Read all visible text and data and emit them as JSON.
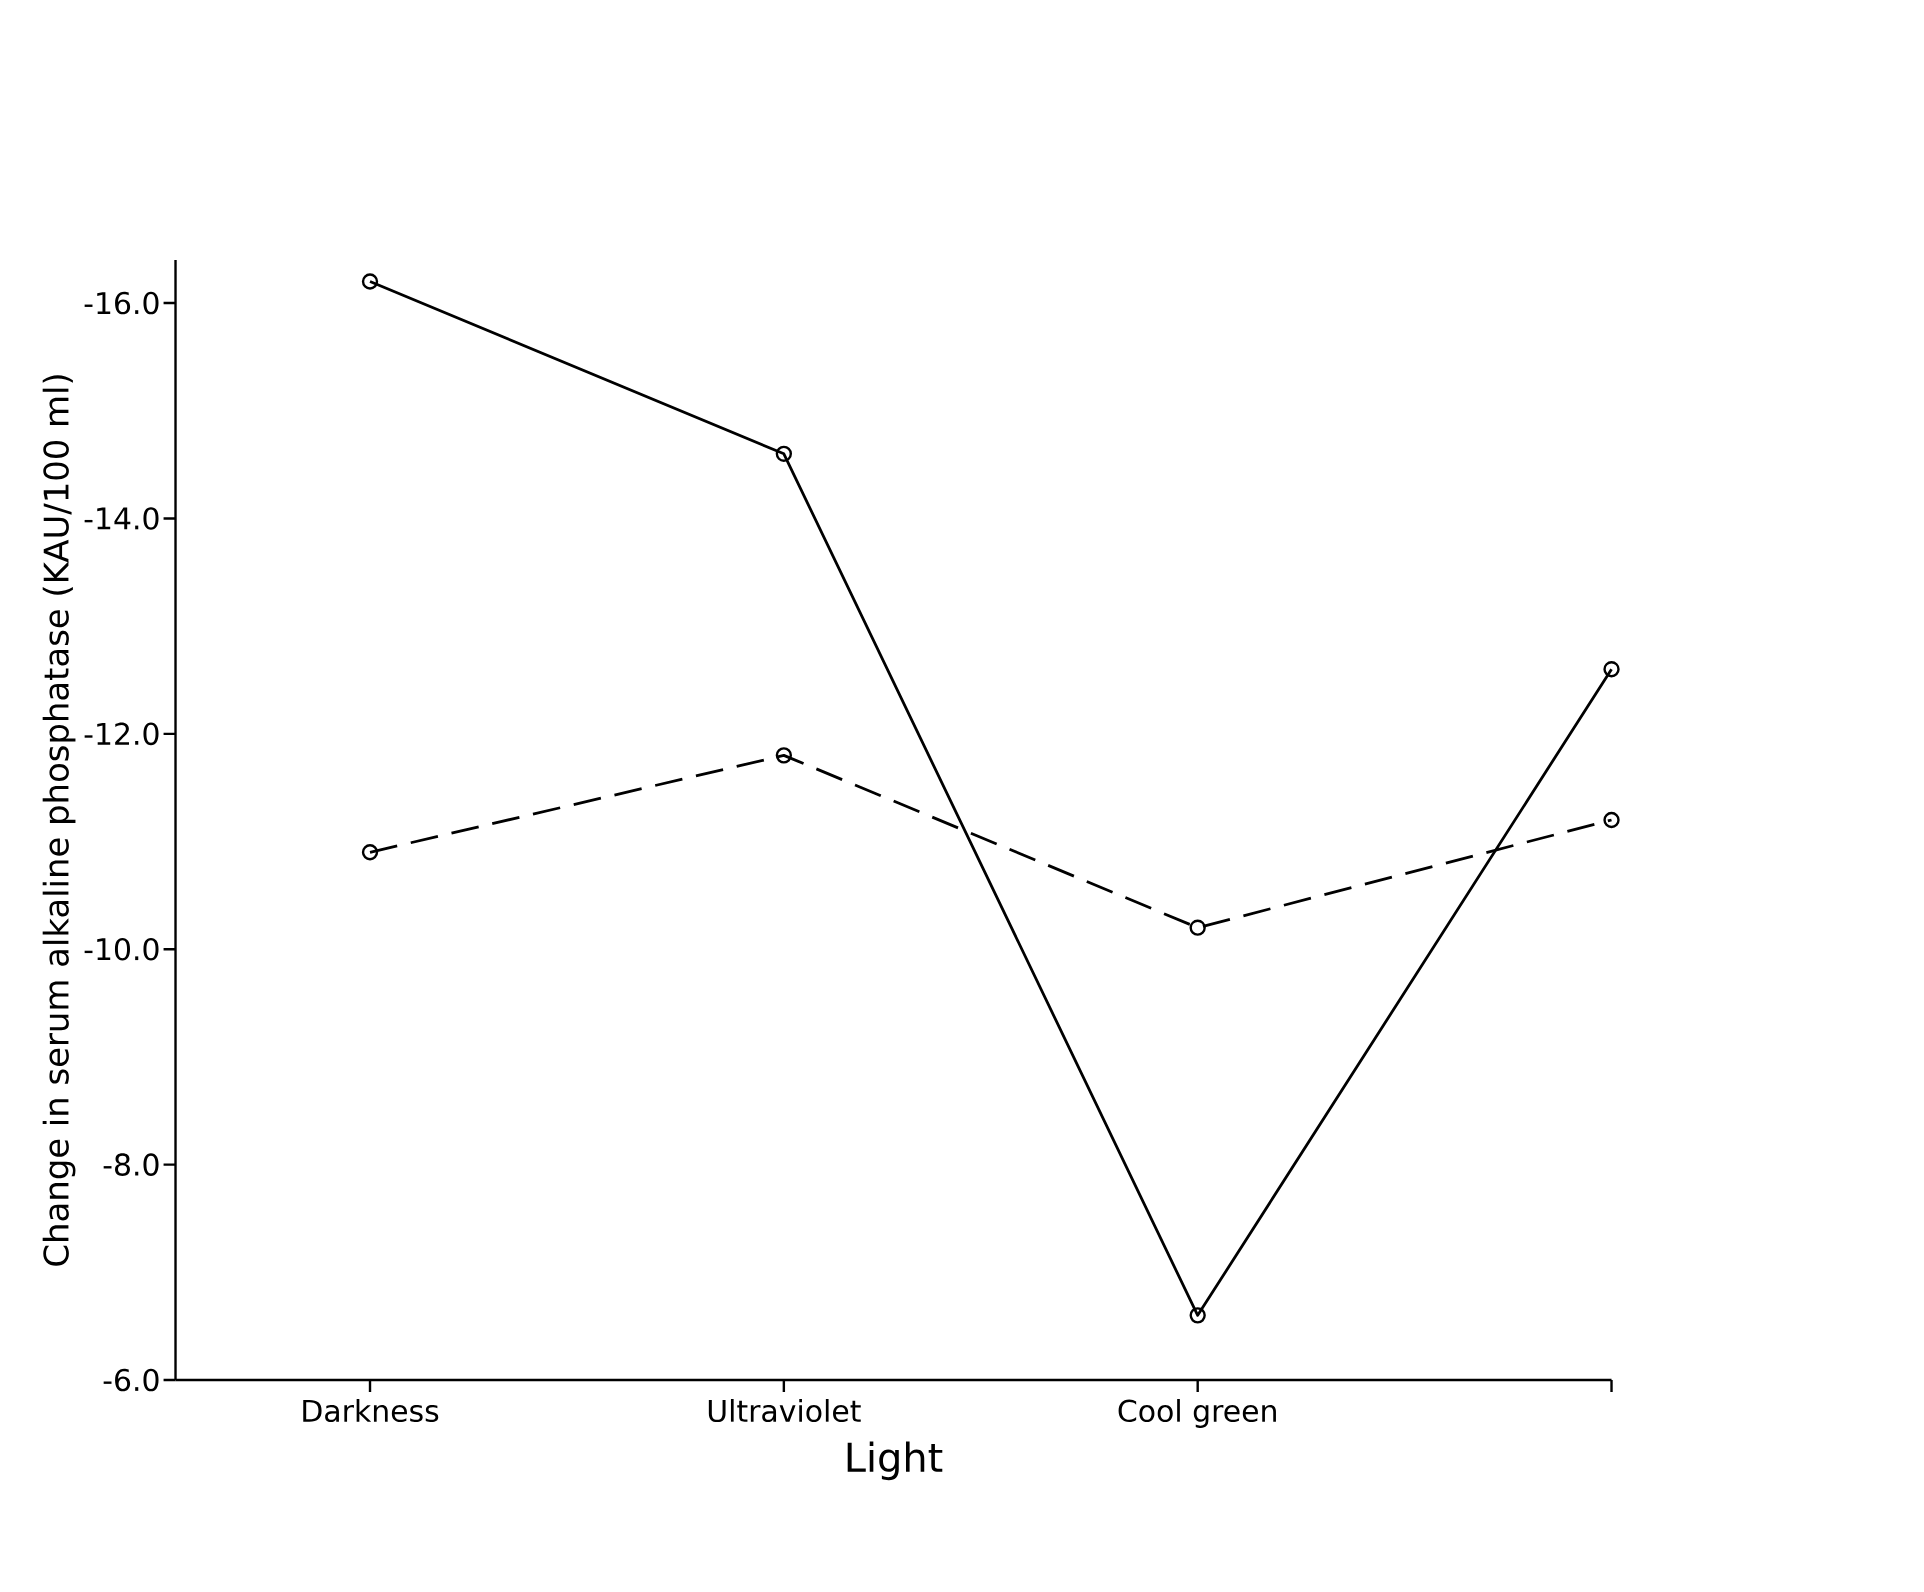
{
  "chart_data": {
    "type": "line",
    "xlabel": "Light",
    "ylabel": "Change in serum alkaline phosphatase (KAU/100 ml)",
    "categories": [
      "Darkness",
      "Ultraviolet",
      "Cool green",
      null
    ],
    "series": [
      {
        "color": "#000000",
        "line_style": "solid",
        "values": [
          -16.2,
          -14.6,
          -6.6,
          -12.6
        ]
      },
      {
        "color": "#000000",
        "line_style": "dashed",
        "values": [
          -10.9,
          -11.8,
          -10.2,
          -11.2
        ]
      }
    ],
    "marker": "circle",
    "ylim": [
      -6,
      -16.4
    ],
    "yticks": [
      {
        "value": -6,
        "label": "-6.0"
      },
      {
        "value": -8,
        "label": "-8.0"
      },
      {
        "value": -10,
        "label": "-10.0"
      },
      {
        "value": -12,
        "label": "-12.0"
      },
      {
        "value": -14,
        "label": "-14.0"
      },
      {
        "value": -16,
        "label": "-16.0"
      }
    ]
  }
}
